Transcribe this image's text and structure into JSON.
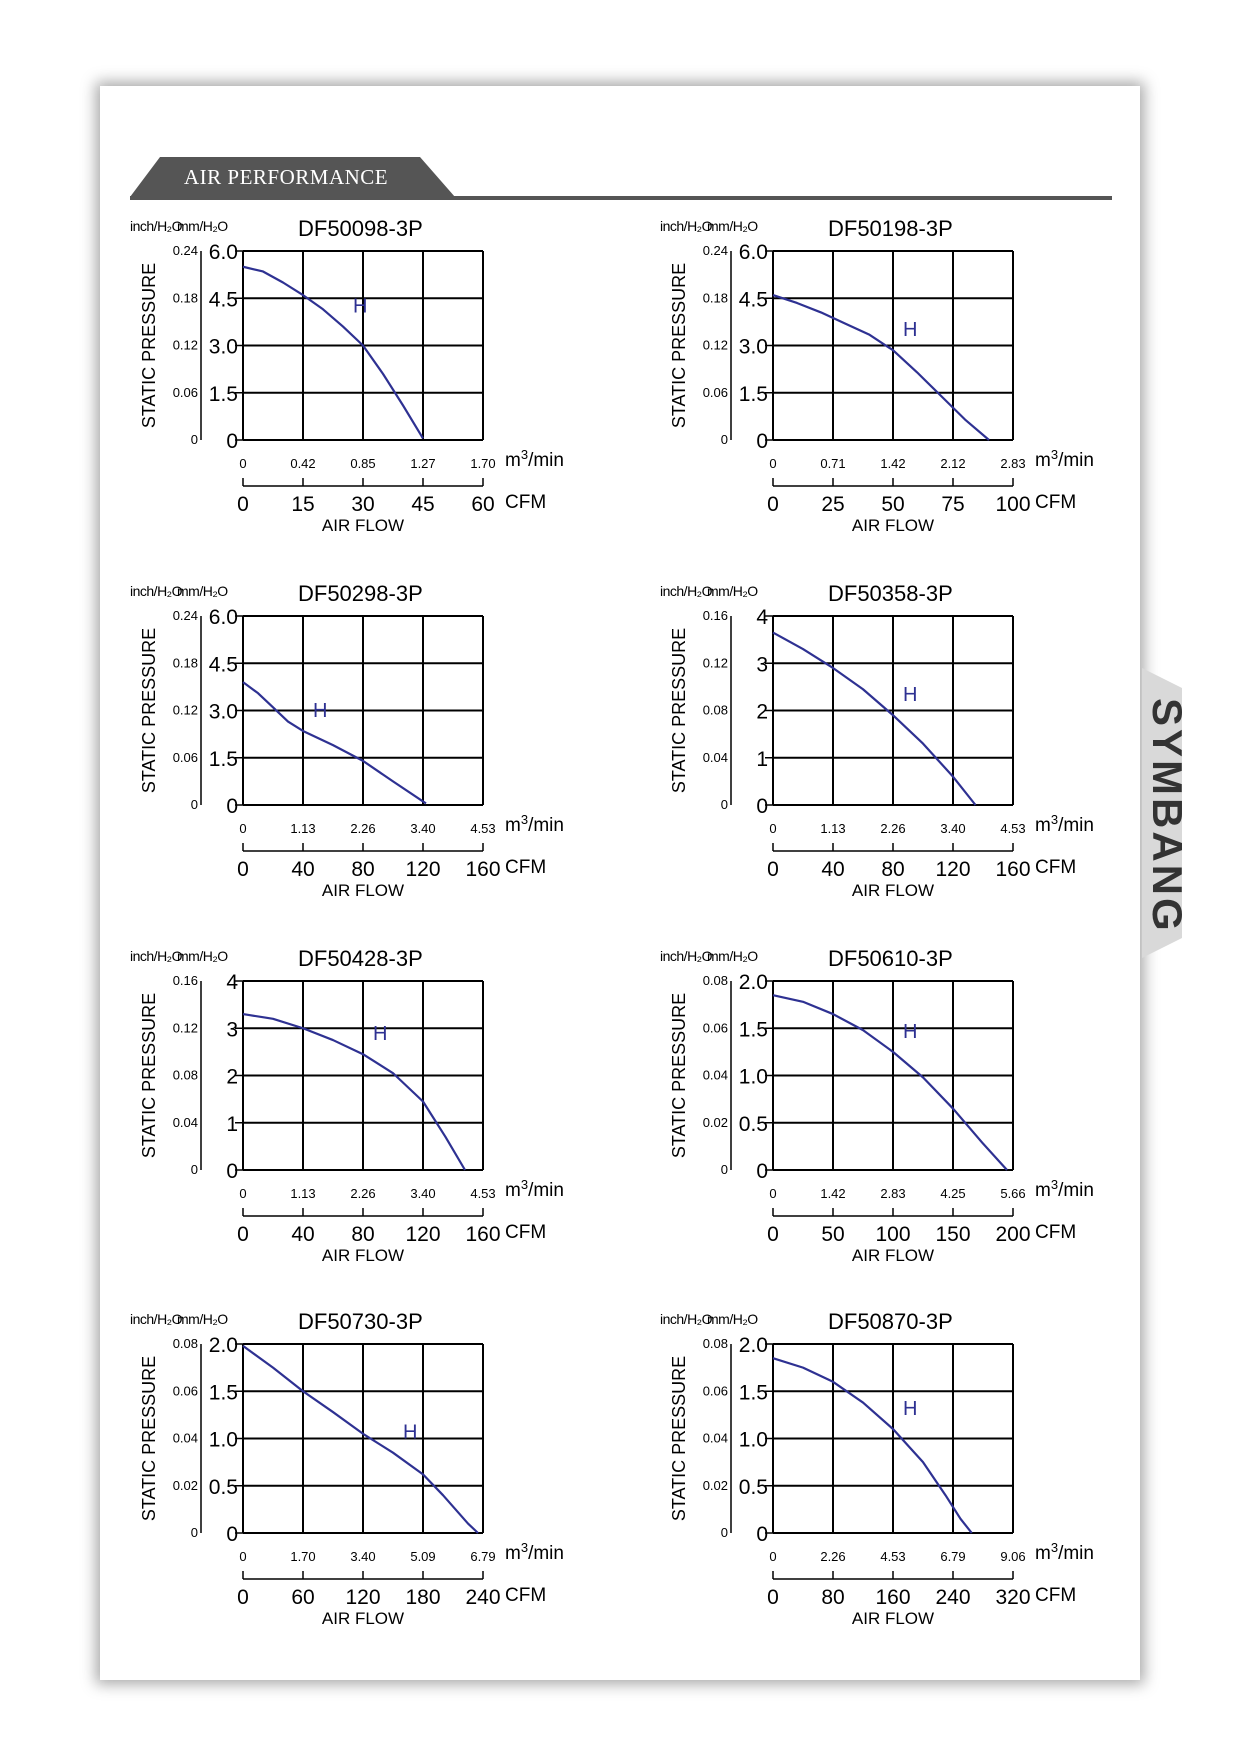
{
  "header": {
    "title": "AIR PERFORMANCE"
  },
  "brand": {
    "text": "SYMBANG"
  },
  "colors": {
    "curve": "#2e3192",
    "grid": "#000000",
    "header_bg": "#555555"
  },
  "chart_data": [
    {
      "type": "line",
      "title": "DF50098-3P",
      "ylabel": "STATIC PRESSURE",
      "y_unit_inch": "inch/H₂O",
      "y_unit_mm": "mm/H₂O",
      "y_ticks_inch": [
        "0",
        "0.06",
        "0.12",
        "0.18",
        "0.24"
      ],
      "y_ticks_mm": [
        "0",
        "1.5",
        "3.0",
        "4.5",
        "6.0"
      ],
      "x_ticks_m3": [
        "0",
        "0.42",
        "0.85",
        "1.27",
        "1.70"
      ],
      "x_unit_m3": "m³/min",
      "x_ticks_cfm": [
        "0",
        "15",
        "30",
        "45",
        "60"
      ],
      "x_unit_cfm": "CFM",
      "xlabel": "AIR FLOW",
      "ylim": [
        0,
        6.0
      ],
      "xlim": [
        0,
        60
      ],
      "label": "H",
      "series": [
        {
          "x": [
            0,
            5,
            10,
            15,
            20,
            25,
            30,
            35,
            40,
            45
          ],
          "y": [
            5.5,
            5.35,
            5.0,
            4.6,
            4.15,
            3.6,
            3.0,
            2.1,
            1.1,
            0.05
          ]
        }
      ]
    },
    {
      "type": "line",
      "title": "DF50198-3P",
      "ylabel": "STATIC PRESSURE",
      "y_unit_inch": "inch/H₂O",
      "y_unit_mm": "mm/H₂O",
      "y_ticks_inch": [
        "0",
        "0.06",
        "0.12",
        "0.18",
        "0.24"
      ],
      "y_ticks_mm": [
        "0",
        "1.5",
        "3.0",
        "4.5",
        "6.0"
      ],
      "x_ticks_m3": [
        "0",
        "0.71",
        "1.42",
        "2.12",
        "2.83"
      ],
      "x_unit_m3": "m³/min",
      "x_ticks_cfm": [
        "0",
        "25",
        "50",
        "75",
        "100"
      ],
      "x_unit_cfm": "CFM",
      "xlabel": "AIR FLOW",
      "ylim": [
        0,
        6.0
      ],
      "xlim": [
        0,
        100
      ],
      "label": "H",
      "series": [
        {
          "x": [
            0,
            10,
            20,
            30,
            40,
            50,
            60,
            70,
            80,
            90
          ],
          "y": [
            4.6,
            4.35,
            4.05,
            3.7,
            3.35,
            2.85,
            2.15,
            1.4,
            0.65,
            0.0
          ]
        }
      ]
    },
    {
      "type": "line",
      "title": "DF50298-3P",
      "ylabel": "STATIC PRESSURE",
      "y_unit_inch": "inch/H₂O",
      "y_unit_mm": "mm/H₂O",
      "y_ticks_inch": [
        "0",
        "0.06",
        "0.12",
        "0.18",
        "0.24"
      ],
      "y_ticks_mm": [
        "0",
        "1.5",
        "3.0",
        "4.5",
        "6.0"
      ],
      "x_ticks_m3": [
        "0",
        "1.13",
        "2.26",
        "3.40",
        "4.53"
      ],
      "x_unit_m3": "m³/min",
      "x_ticks_cfm": [
        "0",
        "40",
        "80",
        "120",
        "160"
      ],
      "x_unit_cfm": "CFM",
      "xlabel": "AIR FLOW",
      "ylim": [
        0,
        6.0
      ],
      "xlim": [
        0,
        160
      ],
      "label": "H",
      "series": [
        {
          "x": [
            0,
            10,
            20,
            30,
            40,
            60,
            80,
            100,
            122
          ],
          "y": [
            3.9,
            3.55,
            3.1,
            2.65,
            2.35,
            1.9,
            1.4,
            0.75,
            0.05
          ]
        }
      ]
    },
    {
      "type": "line",
      "title": "DF50358-3P",
      "ylabel": "STATIC PRESSURE",
      "y_unit_inch": "inch/H₂O",
      "y_unit_mm": "mm/H₂O",
      "y_ticks_inch": [
        "0",
        "0.04",
        "0.08",
        "0.12",
        "0.16"
      ],
      "y_ticks_mm": [
        "0",
        "1",
        "2",
        "3",
        "4"
      ],
      "x_ticks_m3": [
        "0",
        "1.13",
        "2.26",
        "3.40",
        "4.53"
      ],
      "x_unit_m3": "m³/min",
      "x_ticks_cfm": [
        "0",
        "40",
        "80",
        "120",
        "160"
      ],
      "x_unit_cfm": "CFM",
      "xlabel": "AIR FLOW",
      "ylim": [
        0,
        4
      ],
      "xlim": [
        0,
        160
      ],
      "label": "H",
      "series": [
        {
          "x": [
            0,
            20,
            40,
            60,
            80,
            100,
            120,
            135
          ],
          "y": [
            3.65,
            3.3,
            2.9,
            2.45,
            1.9,
            1.3,
            0.6,
            0.0
          ]
        }
      ]
    },
    {
      "type": "line",
      "title": "DF50428-3P",
      "ylabel": "STATIC PRESSURE",
      "y_unit_inch": "inch/H₂O",
      "y_unit_mm": "mm/H₂O",
      "y_ticks_inch": [
        "0",
        "0.04",
        "0.08",
        "0.12",
        "0.16"
      ],
      "y_ticks_mm": [
        "0",
        "1",
        "2",
        "3",
        "4"
      ],
      "x_ticks_m3": [
        "0",
        "1.13",
        "2.26",
        "3.40",
        "4.53"
      ],
      "x_unit_m3": "m³/min",
      "x_ticks_cfm": [
        "0",
        "40",
        "80",
        "120",
        "160"
      ],
      "x_unit_cfm": "CFM",
      "xlabel": "AIR FLOW",
      "ylim": [
        0,
        4
      ],
      "xlim": [
        0,
        160
      ],
      "label": "H",
      "series": [
        {
          "x": [
            0,
            20,
            40,
            60,
            80,
            100,
            120,
            135,
            148
          ],
          "y": [
            3.3,
            3.2,
            3.0,
            2.75,
            2.45,
            2.05,
            1.45,
            0.7,
            0.0
          ]
        }
      ]
    },
    {
      "type": "line",
      "title": "DF50610-3P",
      "ylabel": "STATIC PRESSURE",
      "y_unit_inch": "inch/H₂O",
      "y_unit_mm": "mm/H₂O",
      "y_ticks_inch": [
        "0",
        "0.02",
        "0.04",
        "0.06",
        "0.08"
      ],
      "y_ticks_mm": [
        "0",
        "0.5",
        "1.0",
        "1.5",
        "2.0"
      ],
      "x_ticks_m3": [
        "0",
        "1.42",
        "2.83",
        "4.25",
        "5.66"
      ],
      "x_unit_m3": "m³/min",
      "x_ticks_cfm": [
        "0",
        "50",
        "100",
        "150",
        "200"
      ],
      "x_unit_cfm": "CFM",
      "xlabel": "AIR FLOW",
      "ylim": [
        0,
        2.0
      ],
      "xlim": [
        0,
        200
      ],
      "label": "H",
      "series": [
        {
          "x": [
            0,
            25,
            50,
            75,
            100,
            125,
            150,
            175,
            195
          ],
          "y": [
            1.85,
            1.78,
            1.65,
            1.48,
            1.25,
            0.98,
            0.65,
            0.28,
            0.0
          ]
        }
      ]
    },
    {
      "type": "line",
      "title": "DF50730-3P",
      "ylabel": "STATIC PRESSURE",
      "y_unit_inch": "inch/H₂O",
      "y_unit_mm": "mm/H₂O",
      "y_ticks_inch": [
        "0",
        "0.02",
        "0.04",
        "0.06",
        "0.08"
      ],
      "y_ticks_mm": [
        "0",
        "0.5",
        "1.0",
        "1.5",
        "2.0"
      ],
      "x_ticks_m3": [
        "0",
        "1.70",
        "3.40",
        "5.09",
        "6.79"
      ],
      "x_unit_m3": "m³/min",
      "x_ticks_cfm": [
        "0",
        "60",
        "120",
        "180",
        "240"
      ],
      "x_unit_cfm": "CFM",
      "xlabel": "AIR FLOW",
      "ylim": [
        0,
        2.0
      ],
      "xlim": [
        0,
        240
      ],
      "label": "H",
      "series": [
        {
          "x": [
            0,
            30,
            60,
            90,
            120,
            150,
            180,
            200,
            225,
            235
          ],
          "y": [
            1.98,
            1.75,
            1.5,
            1.28,
            1.05,
            0.85,
            0.62,
            0.4,
            0.1,
            0.0
          ]
        }
      ]
    },
    {
      "type": "line",
      "title": "DF50870-3P",
      "ylabel": "STATIC PRESSURE",
      "y_unit_inch": "inch/H₂O",
      "y_unit_mm": "mm/H₂O",
      "y_ticks_inch": [
        "0",
        "0.02",
        "0.04",
        "0.06",
        "0.08"
      ],
      "y_ticks_mm": [
        "0",
        "0.5",
        "1.0",
        "1.5",
        "2.0"
      ],
      "x_ticks_m3": [
        "0",
        "2.26",
        "4.53",
        "6.79",
        "9.06"
      ],
      "x_unit_m3": "m³/min",
      "x_ticks_cfm": [
        "0",
        "80",
        "160",
        "240",
        "320"
      ],
      "x_unit_cfm": "CFM",
      "xlabel": "AIR FLOW",
      "ylim": [
        0,
        2.0
      ],
      "xlim": [
        0,
        320
      ],
      "label": "H",
      "series": [
        {
          "x": [
            0,
            40,
            80,
            120,
            160,
            200,
            230,
            250,
            265
          ],
          "y": [
            1.85,
            1.75,
            1.6,
            1.38,
            1.1,
            0.75,
            0.4,
            0.15,
            0.0
          ]
        }
      ]
    }
  ]
}
